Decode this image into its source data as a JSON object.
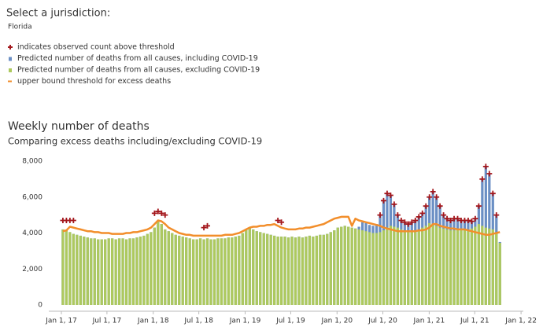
{
  "jurisdiction_label": "Select a jurisdiction:",
  "jurisdiction": "Florida",
  "chart_data": {
    "type": "bar",
    "title": "Weekly number of deaths",
    "subtitle": "Comparing excess deaths including/excluding COVID-19",
    "x": [
      "2017-01-07",
      "2017-01-21",
      "2017-02-04",
      "2017-02-18",
      "2017-03-04",
      "2017-03-18",
      "2017-04-01",
      "2017-04-15",
      "2017-04-29",
      "2017-05-13",
      "2017-05-27",
      "2017-06-10",
      "2017-06-24",
      "2017-07-08",
      "2017-07-22",
      "2017-08-05",
      "2017-08-19",
      "2017-09-02",
      "2017-09-16",
      "2017-09-30",
      "2017-10-14",
      "2017-10-28",
      "2017-11-11",
      "2017-11-25",
      "2017-12-09",
      "2017-12-23",
      "2018-01-06",
      "2018-01-20",
      "2018-02-03",
      "2018-02-17",
      "2018-03-03",
      "2018-03-17",
      "2018-03-31",
      "2018-04-14",
      "2018-04-28",
      "2018-05-12",
      "2018-05-26",
      "2018-06-09",
      "2018-06-23",
      "2018-07-07",
      "2018-07-21",
      "2018-08-04",
      "2018-08-18",
      "2018-09-01",
      "2018-09-15",
      "2018-09-29",
      "2018-10-13",
      "2018-10-27",
      "2018-11-10",
      "2018-11-24",
      "2018-12-08",
      "2018-12-22",
      "2019-01-05",
      "2019-01-19",
      "2019-02-02",
      "2019-02-16",
      "2019-03-02",
      "2019-03-16",
      "2019-03-30",
      "2019-04-13",
      "2019-04-27",
      "2019-05-11",
      "2019-05-25",
      "2019-06-08",
      "2019-06-22",
      "2019-07-06",
      "2019-07-20",
      "2019-08-03",
      "2019-08-17",
      "2019-08-31",
      "2019-09-14",
      "2019-09-28",
      "2019-10-12",
      "2019-10-26",
      "2019-11-09",
      "2019-11-23",
      "2019-12-07",
      "2019-12-21",
      "2020-01-04",
      "2020-01-18",
      "2020-02-01",
      "2020-02-15",
      "2020-02-29",
      "2020-03-14",
      "2020-03-28",
      "2020-04-11",
      "2020-04-25",
      "2020-05-09",
      "2020-05-23",
      "2020-06-06",
      "2020-06-20",
      "2020-07-04",
      "2020-07-18",
      "2020-08-01",
      "2020-08-15",
      "2020-08-29",
      "2020-09-12",
      "2020-09-26",
      "2020-10-10",
      "2020-10-24",
      "2020-11-07",
      "2020-11-21",
      "2020-12-05",
      "2020-12-19",
      "2021-01-02",
      "2021-01-16",
      "2021-01-30",
      "2021-02-13",
      "2021-02-27",
      "2021-03-13",
      "2021-03-27",
      "2021-04-10",
      "2021-04-24",
      "2021-05-08",
      "2021-05-22",
      "2021-06-05",
      "2021-06-19",
      "2021-07-03",
      "2021-07-17",
      "2021-07-31",
      "2021-08-14",
      "2021-08-28",
      "2021-09-11",
      "2021-09-25",
      "2021-10-09"
    ],
    "series": [
      {
        "name": "indicates observed count above threshold",
        "color": "#a3161b",
        "kind": "marker",
        "values": [
          4700,
          4700,
          4700,
          4700,
          null,
          null,
          null,
          null,
          null,
          null,
          null,
          null,
          null,
          null,
          null,
          null,
          null,
          null,
          null,
          null,
          null,
          null,
          null,
          null,
          null,
          null,
          5100,
          5200,
          5100,
          5000,
          null,
          null,
          null,
          null,
          null,
          null,
          null,
          null,
          null,
          null,
          4300,
          4400,
          null,
          null,
          null,
          null,
          null,
          null,
          null,
          null,
          null,
          null,
          null,
          null,
          null,
          null,
          null,
          null,
          null,
          null,
          null,
          4700,
          4600,
          null,
          null,
          null,
          null,
          null,
          null,
          null,
          null,
          null,
          null,
          null,
          null,
          null,
          null,
          null,
          null,
          null,
          null,
          null,
          null,
          null,
          null,
          null,
          null,
          null,
          null,
          null,
          5000,
          5800,
          6200,
          6100,
          5600,
          5000,
          4700,
          4600,
          4500,
          4600,
          4700,
          4900,
          5100,
          5500,
          6000,
          6300,
          6000,
          5500,
          5000,
          4800,
          4700,
          4800,
          4800,
          4700,
          4700,
          4700,
          4650,
          4800,
          5500,
          7000,
          7700,
          7300,
          6200,
          5000,
          null
        ]
      },
      {
        "name": "Predicted number of deaths from all causes, including COVID-19",
        "color": "#6b8fc4",
        "kind": "bar",
        "values": [
          4200,
          4150,
          4050,
          3950,
          3900,
          3850,
          3800,
          3750,
          3700,
          3700,
          3650,
          3650,
          3650,
          3700,
          3700,
          3650,
          3700,
          3700,
          3650,
          3700,
          3700,
          3750,
          3800,
          3850,
          3950,
          4050,
          4300,
          4650,
          4500,
          4200,
          4100,
          4000,
          3900,
          3850,
          3800,
          3750,
          3700,
          3650,
          3650,
          3700,
          3650,
          3700,
          3650,
          3650,
          3700,
          3700,
          3700,
          3750,
          3750,
          3800,
          3850,
          4000,
          4200,
          4300,
          4200,
          4100,
          4050,
          4000,
          3950,
          3900,
          3850,
          3800,
          3800,
          3800,
          3750,
          3800,
          3750,
          3800,
          3750,
          3800,
          3850,
          3800,
          3850,
          3900,
          3900,
          3950,
          4050,
          4150,
          4300,
          4350,
          4400,
          4350,
          4300,
          4250,
          4350,
          4600,
          4550,
          4450,
          4400,
          4500,
          5000,
          5800,
          6200,
          6100,
          5600,
          5000,
          4700,
          4600,
          4500,
          4600,
          4700,
          4900,
          5100,
          5500,
          6000,
          6300,
          6000,
          5500,
          5000,
          4800,
          4700,
          4800,
          4800,
          4700,
          4700,
          4700,
          4650,
          4800,
          5500,
          7000,
          7700,
          7300,
          6200,
          5000,
          3500
        ]
      },
      {
        "name": "Predicted number of deaths from all causes, excluding COVID-19",
        "color": "#adc95e",
        "kind": "bar",
        "values": [
          4200,
          4150,
          4050,
          3950,
          3900,
          3850,
          3800,
          3750,
          3700,
          3700,
          3650,
          3650,
          3650,
          3700,
          3700,
          3650,
          3700,
          3700,
          3650,
          3700,
          3700,
          3750,
          3800,
          3850,
          3950,
          4050,
          4300,
          4650,
          4500,
          4200,
          4100,
          4000,
          3900,
          3850,
          3800,
          3750,
          3700,
          3650,
          3650,
          3700,
          3650,
          3700,
          3650,
          3650,
          3700,
          3700,
          3700,
          3750,
          3750,
          3800,
          3850,
          4000,
          4200,
          4300,
          4200,
          4100,
          4050,
          4000,
          3950,
          3900,
          3850,
          3800,
          3800,
          3800,
          3750,
          3800,
          3750,
          3800,
          3750,
          3800,
          3850,
          3800,
          3850,
          3900,
          3900,
          3950,
          4050,
          4150,
          4300,
          4350,
          4400,
          4350,
          4300,
          4250,
          4200,
          4150,
          4100,
          4050,
          4000,
          4000,
          4050,
          4150,
          4300,
          4400,
          4350,
          4300,
          4200,
          4150,
          4100,
          4100,
          4150,
          4200,
          4300,
          4400,
          4550,
          4500,
          4400,
          4300,
          4250,
          4200,
          4150,
          4150,
          4200,
          4200,
          4150,
          4200,
          4250,
          4350,
          4500,
          4400,
          4300,
          4250,
          4200,
          4000,
          3450
        ]
      },
      {
        "name": "upper bound threshold for excess deaths",
        "color": "#f28e2b",
        "kind": "line",
        "values": [
          4100,
          4150,
          4350,
          4300,
          4250,
          4200,
          4150,
          4100,
          4100,
          4050,
          4050,
          4000,
          4000,
          4000,
          3950,
          3950,
          3950,
          3950,
          4000,
          4000,
          4050,
          4050,
          4100,
          4150,
          4200,
          4300,
          4500,
          4700,
          4650,
          4500,
          4300,
          4200,
          4100,
          4000,
          3950,
          3900,
          3900,
          3850,
          3850,
          3850,
          3850,
          3850,
          3850,
          3850,
          3850,
          3850,
          3900,
          3900,
          3900,
          3950,
          4000,
          4100,
          4200,
          4300,
          4350,
          4350,
          4400,
          4400,
          4450,
          4450,
          4500,
          4400,
          4300,
          4250,
          4200,
          4200,
          4200,
          4250,
          4250,
          4300,
          4300,
          4350,
          4400,
          4450,
          4500,
          4600,
          4700,
          4800,
          4850,
          4900,
          4900,
          4900,
          4400,
          4800,
          4700,
          4650,
          4600,
          4550,
          4500,
          4450,
          4400,
          4300,
          4250,
          4200,
          4150,
          4100,
          4100,
          4100,
          4100,
          4100,
          4100,
          4150,
          4150,
          4200,
          4300,
          4500,
          4500,
          4400,
          4350,
          4300,
          4250,
          4250,
          4200,
          4200,
          4200,
          4150,
          4100,
          4050,
          4000,
          3950,
          3900,
          3900,
          3950,
          4000,
          4050
        ]
      }
    ],
    "xlim": [
      "2016-11-12",
      "2022-01-10"
    ],
    "xticks": [
      {
        "value": "2017-01-01",
        "label": "Jan 1, 17"
      },
      {
        "value": "2017-07-01",
        "label": "Jul 1, 17"
      },
      {
        "value": "2018-01-01",
        "label": "Jan 1, 18"
      },
      {
        "value": "2018-07-01",
        "label": "Jul 1, 18"
      },
      {
        "value": "2019-01-01",
        "label": "Jan 1, 19"
      },
      {
        "value": "2019-07-01",
        "label": "Jul 1, 19"
      },
      {
        "value": "2020-01-01",
        "label": "Jan 1, 20"
      },
      {
        "value": "2020-07-01",
        "label": "Jul 1, 20"
      },
      {
        "value": "2021-01-01",
        "label": "Jan 1, 21"
      },
      {
        "value": "2021-07-01",
        "label": "Jul 1, 21"
      },
      {
        "value": "2022-01-01",
        "label": "Jan 1, 22"
      }
    ],
    "ylim": [
      0,
      8000
    ],
    "yticks": [
      0,
      {
        "value": 2000,
        "label": "2,000"
      },
      {
        "value": 4000,
        "label": "4,000"
      },
      {
        "value": 6000,
        "label": "6,000"
      },
      {
        "value": 8000,
        "label": "8,000"
      }
    ],
    "grid": false
  }
}
